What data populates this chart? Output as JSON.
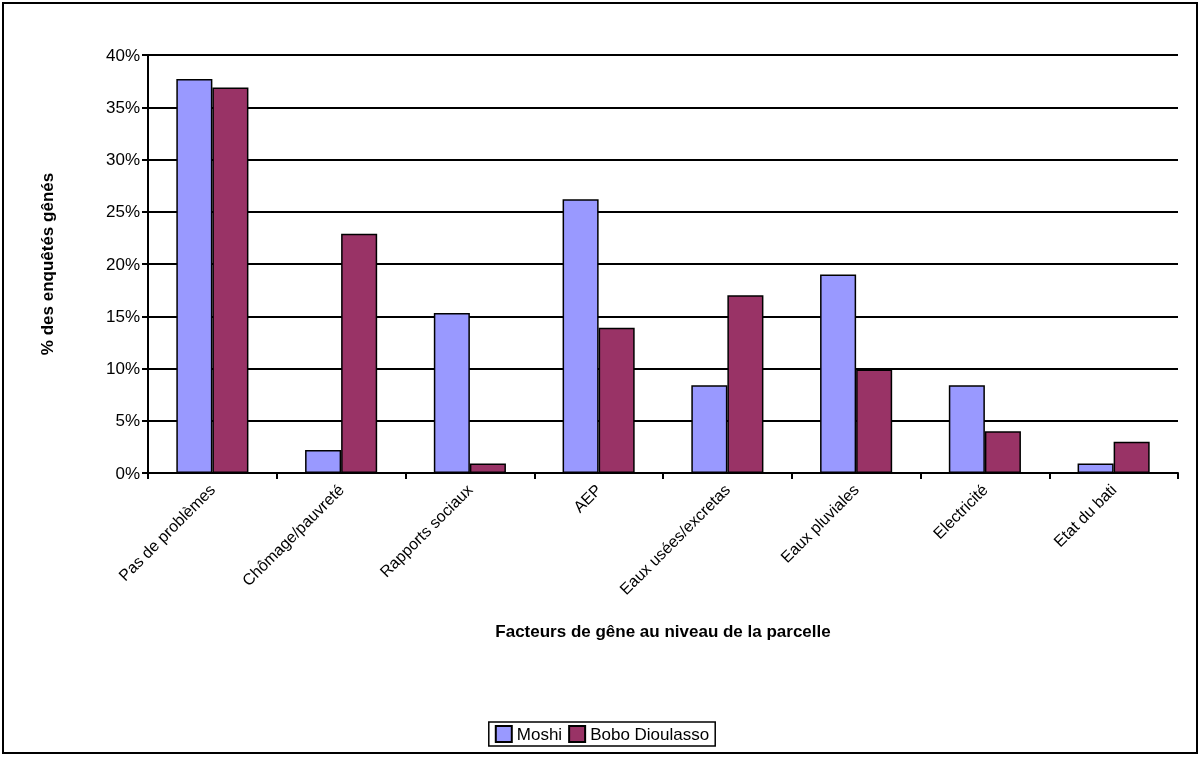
{
  "chart_data": {
    "type": "bar",
    "xlabel": "Facteurs de gêne au niveau de la parcelle",
    "ylabel": "% des enquêtés gênés",
    "categories": [
      "Pas de problèmes",
      "Chômage/pauvreté",
      "Rapports sociaux",
      "AEP",
      "Eaux usées/excretas",
      "Eaux pluviales",
      "Electricité",
      "Etat du bati"
    ],
    "series": [
      {
        "name": "Moshi",
        "color": "#9999ff",
        "values": [
          37.7,
          2.2,
          15.3,
          26.2,
          8.4,
          19.0,
          8.4,
          0.9
        ]
      },
      {
        "name": "Bobo Dioulasso",
        "color": "#993366",
        "values": [
          36.9,
          22.9,
          0.9,
          13.9,
          17.0,
          9.9,
          4.0,
          3.0
        ]
      }
    ],
    "ylim": [
      0,
      40
    ],
    "yticks": [
      {
        "value": 0,
        "label": "0%"
      },
      {
        "value": 5,
        "label": "5%"
      },
      {
        "value": 10,
        "label": "10%"
      },
      {
        "value": 15,
        "label": "15%"
      },
      {
        "value": 20,
        "label": "20%"
      },
      {
        "value": 25,
        "label": "25%"
      },
      {
        "value": 30,
        "label": "30%"
      },
      {
        "value": 35,
        "label": "35%"
      },
      {
        "value": 40,
        "label": "40%"
      }
    ],
    "grid": "y",
    "legend": "bottom"
  }
}
